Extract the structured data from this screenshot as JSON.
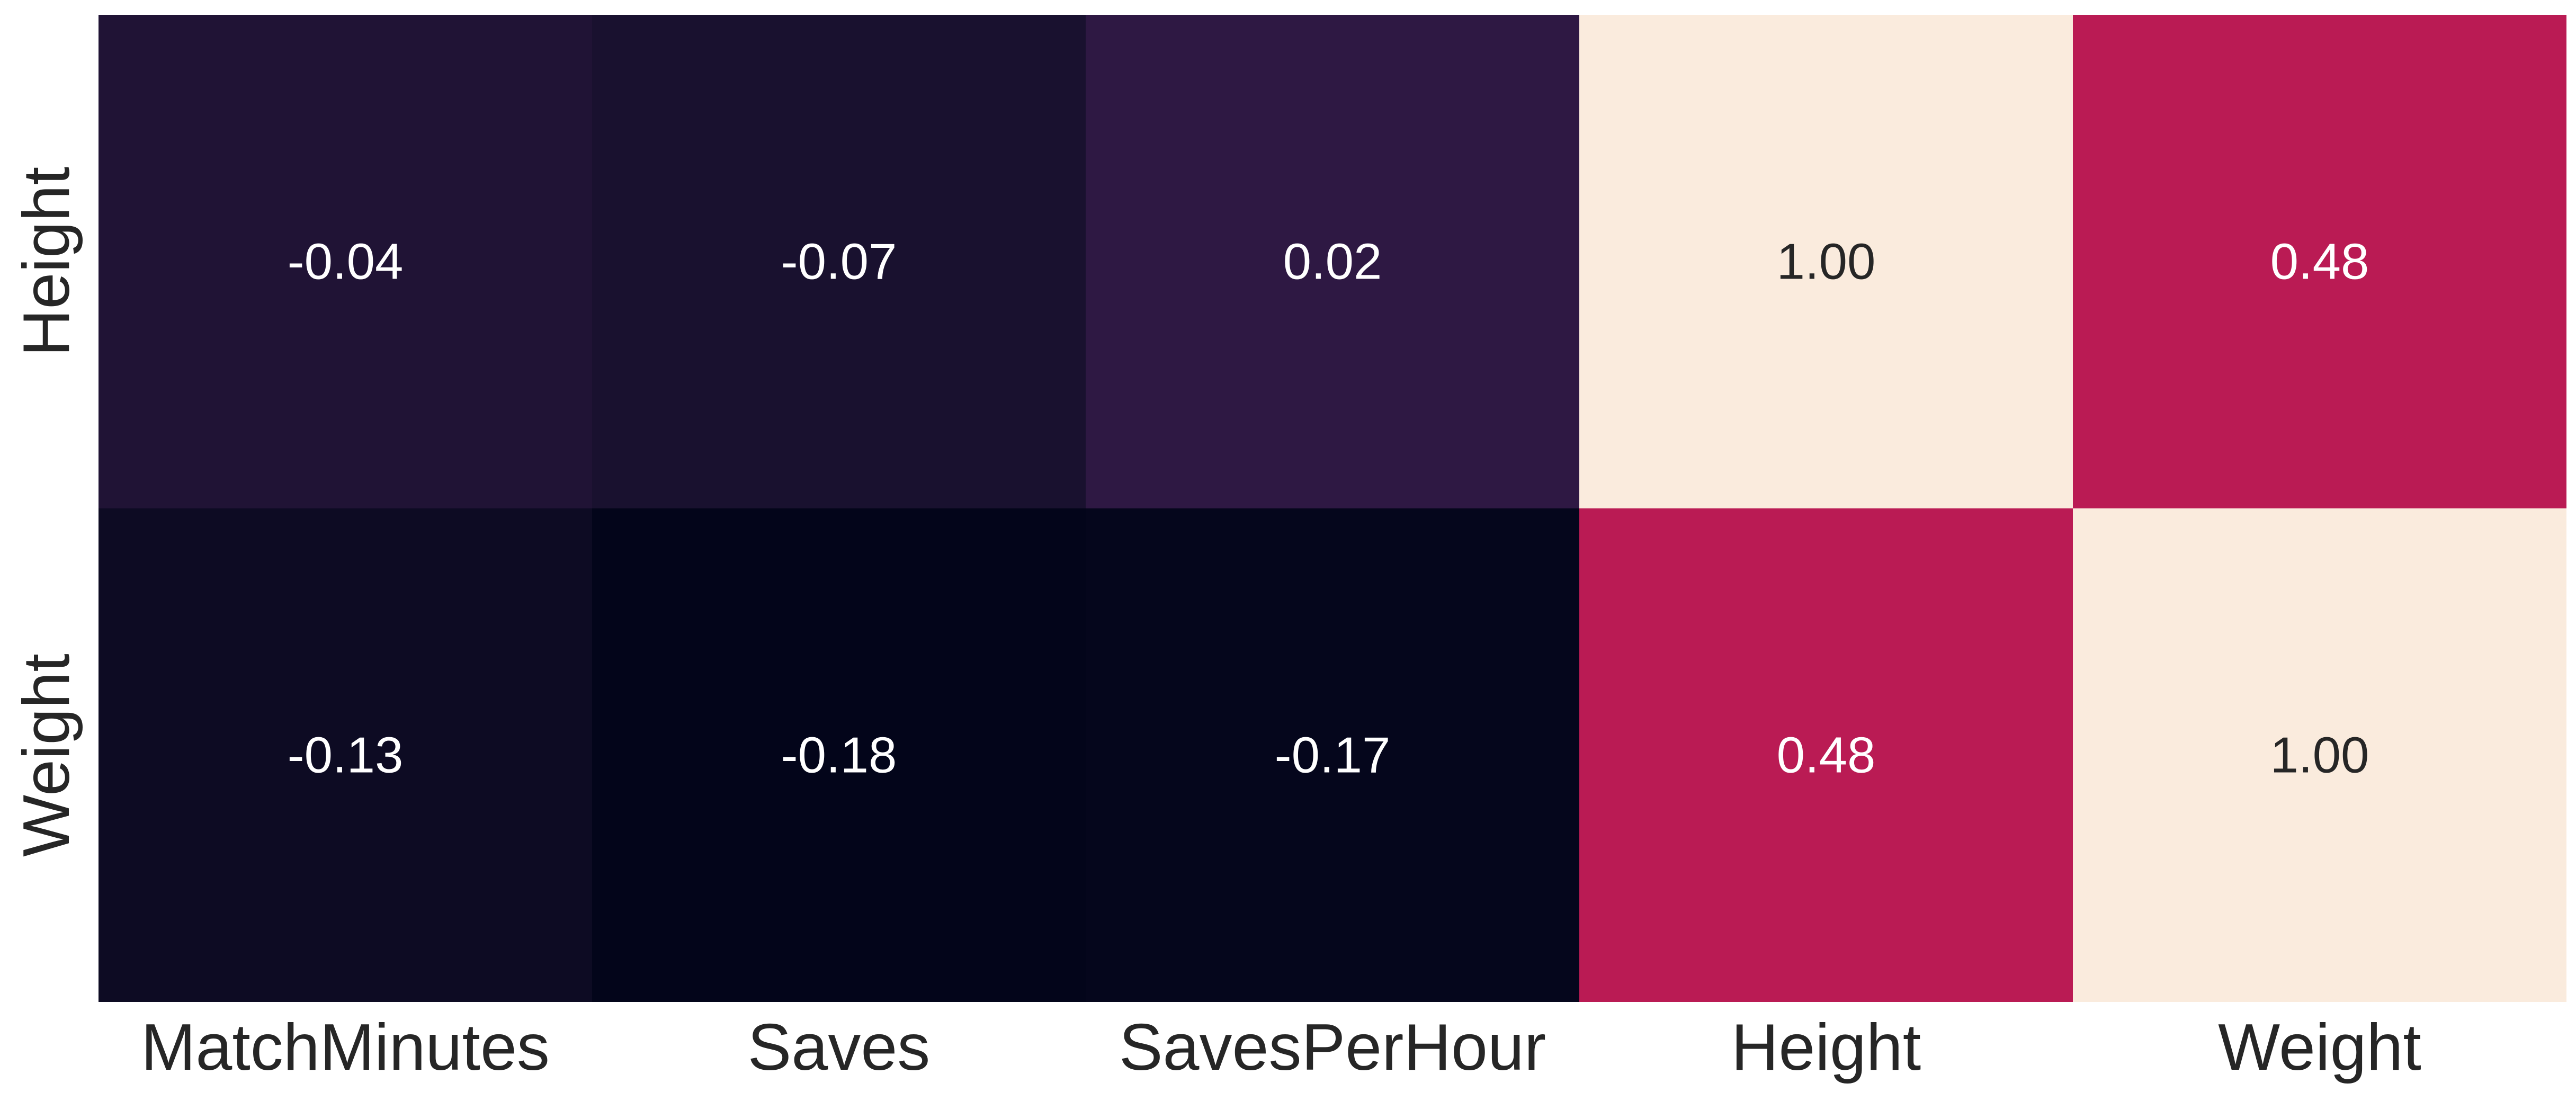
{
  "chart_data": {
    "type": "heatmap",
    "title": "",
    "xlabel": "",
    "ylabel": "",
    "x_categories": [
      "MatchMinutes",
      "Saves",
      "SavesPerHour",
      "Height",
      "Weight"
    ],
    "y_categories": [
      "Height",
      "Weight"
    ],
    "values": [
      [
        -0.04,
        -0.07,
        0.02,
        1.0,
        0.48
      ],
      [
        -0.13,
        -0.18,
        -0.17,
        0.48,
        1.0
      ]
    ],
    "value_labels": [
      [
        "-0.04",
        "-0.07",
        "0.02",
        "1.00",
        "0.48"
      ],
      [
        "-0.13",
        "-0.18",
        "-0.17",
        "0.48",
        "1.00"
      ]
    ],
    "colorbar": false,
    "grid": false,
    "colormap": "rocket",
    "colors": {
      "low": "#03051a",
      "high": "#faebdd",
      "mid_red": "#e03045",
      "text_dark": "#262626",
      "text_light": "#ffffff"
    }
  }
}
